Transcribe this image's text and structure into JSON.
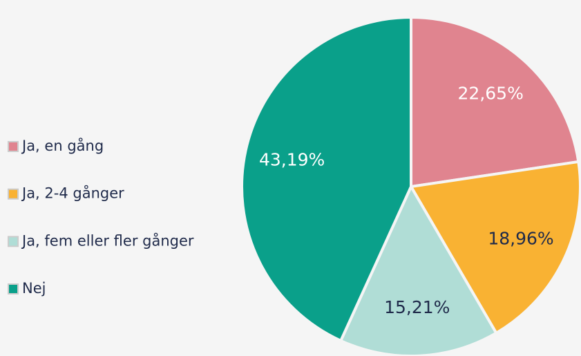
{
  "chart_data": {
    "type": "pie",
    "categories": [
      "Ja, en gång",
      "Ja, 2-4 gånger",
      "Ja, fem eller fler gånger",
      "Nej"
    ],
    "values": [
      22.65,
      18.96,
      15.21,
      43.19
    ],
    "value_labels": [
      "22,65%",
      "18,96%",
      "15,21%",
      "43,19%"
    ],
    "colors": [
      "#e0848f",
      "#f9b233",
      "#b0ddd6",
      "#0aa08a"
    ],
    "legend": "left"
  }
}
